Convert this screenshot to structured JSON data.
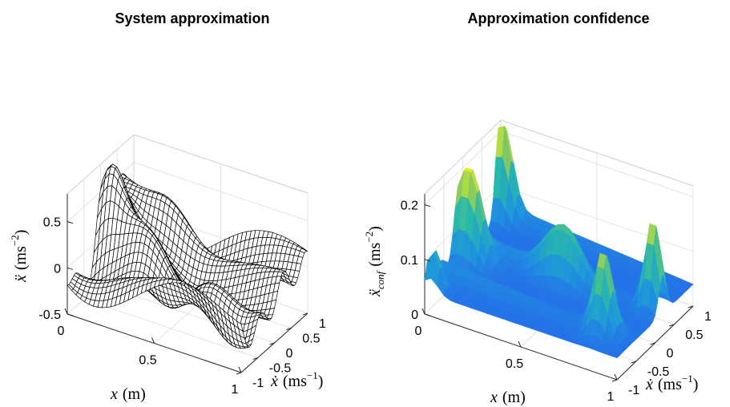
{
  "chart_data": [
    {
      "type": "surface",
      "render": "mesh",
      "title": "System approximation",
      "xlabel": {
        "sym": "x",
        "unit": "(m)"
      },
      "ylabel": {
        "sym": "ẋ",
        "unit": "(ms",
        "exp": "−1",
        "close": ")"
      },
      "zlabel": {
        "sym": "ẍ",
        "unit": "(ms",
        "exp": "−2",
        "close": ")"
      },
      "xlim": [
        0,
        1
      ],
      "ylim": [
        -1,
        1
      ],
      "zlim": [
        -0.5,
        0.8
      ],
      "xticks": [
        0,
        0.5,
        1
      ],
      "xtick_labels": [
        "0",
        "0.5",
        "1"
      ],
      "yticks": [
        -1,
        -0.5,
        0,
        0.5,
        1
      ],
      "ytick_labels": [
        "-1",
        "-0.5",
        "0",
        "0.5",
        "1"
      ],
      "zticks": [
        -0.5,
        0,
        0.5
      ],
      "ztick_labels": [
        "-0.5",
        "0",
        "0.5"
      ],
      "grid": true,
      "colors": {
        "edge": "#000000",
        "face": "#ffffff"
      }
    },
    {
      "type": "surface",
      "render": "shaded",
      "colormap": "parula",
      "title": "Approximation confidence",
      "xlabel": {
        "sym": "x",
        "unit": "(m)"
      },
      "ylabel": {
        "sym": "ẋ",
        "unit": "(ms",
        "exp": "−1",
        "close": ")"
      },
      "zlabel": {
        "sym": "ẍ",
        "sub": "conf",
        "unit": "(ms",
        "exp": "−2",
        "close": ")"
      },
      "xlim": [
        0,
        1
      ],
      "ylim": [
        -1,
        1
      ],
      "zlim": [
        0,
        0.22
      ],
      "xticks": [
        0,
        0.5,
        1
      ],
      "xtick_labels": [
        "0",
        "0.5",
        "1"
      ],
      "yticks": [
        -1,
        -0.5,
        0,
        0.5,
        1
      ],
      "ytick_labels": [
        "-1",
        "-0.5",
        "0",
        "0.5",
        "1"
      ],
      "zticks": [
        0,
        0.1,
        0.2
      ],
      "ztick_labels": [
        "0",
        "0.1",
        "0.2"
      ],
      "grid": true,
      "colors": {
        "low": "#3b3bd6",
        "mid": "#25a8c8",
        "high": "#e8e13a"
      }
    }
  ]
}
